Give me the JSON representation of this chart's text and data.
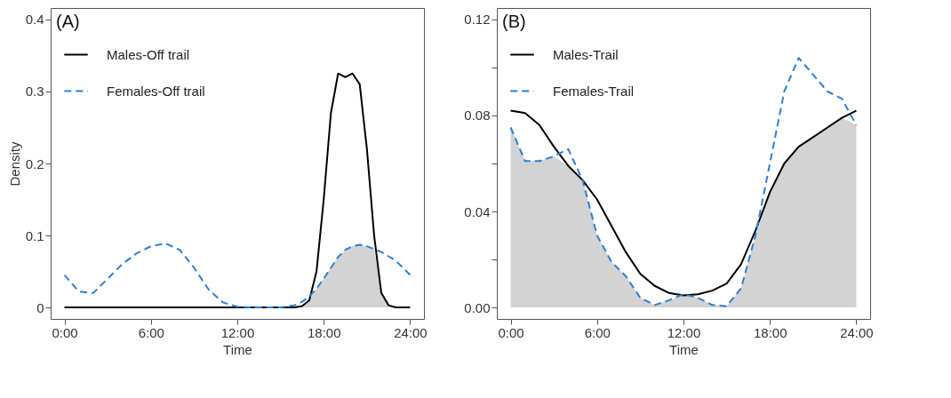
{
  "chart_data": [
    {
      "type": "line",
      "title": "(A)",
      "xlabel": "Time",
      "ylabel": "Density",
      "legend": "top left",
      "grid": false,
      "x": [
        0,
        1,
        2,
        3,
        4,
        5,
        6,
        7,
        8,
        9,
        10,
        11,
        12,
        13,
        14,
        15,
        16,
        16.5,
        17,
        17.5,
        18,
        18.5,
        19,
        19.5,
        20,
        20.5,
        21,
        21.5,
        22,
        22.5,
        23,
        24
      ],
      "xlim": [
        -0.96,
        24.96
      ],
      "xticks": [
        {
          "value": 0,
          "label": "0:00"
        },
        {
          "value": 6,
          "label": "6:00"
        },
        {
          "value": 12,
          "label": "12:00"
        },
        {
          "value": 18,
          "label": "18:00"
        },
        {
          "value": 24,
          "label": "24:00"
        }
      ],
      "ylim": [
        -0.016,
        0.416
      ],
      "yticks": [
        0,
        {
          "value": 0.1,
          "label": "0.1"
        },
        {
          "value": 0.2,
          "label": "0.2"
        },
        {
          "value": 0.3,
          "label": "0.3"
        },
        {
          "value": 0.4,
          "label": "0.4"
        }
      ],
      "series": [
        {
          "type": "area",
          "color": "#d3d3d3",
          "values": [
            0,
            0,
            0,
            0,
            0,
            0,
            0,
            0,
            0,
            0,
            0,
            0,
            0,
            0,
            0,
            0,
            0,
            0.002,
            0.01,
            0.026,
            0.04,
            0.055,
            0.07,
            0.08,
            0.085,
            0.087,
            0.085,
            0.081,
            0.02,
            0.003,
            0,
            0
          ]
        },
        {
          "name": "Males-Off trail",
          "color": "#000000",
          "line_style": "solid",
          "values": [
            0,
            0,
            0,
            0,
            0,
            0,
            0,
            0,
            0,
            0,
            0,
            0,
            0,
            0,
            0,
            0,
            0,
            0.002,
            0.01,
            0.05,
            0.15,
            0.27,
            0.325,
            0.32,
            0.325,
            0.31,
            0.22,
            0.1,
            0.02,
            0.003,
            0,
            0
          ]
        },
        {
          "name": "Females-Off trail",
          "color": "#2a7fd4",
          "line_style": "dashed",
          "values": [
            0.045,
            0.022,
            0.02,
            0.04,
            0.06,
            0.075,
            0.085,
            0.089,
            0.08,
            0.055,
            0.025,
            0.007,
            0.001,
            0,
            0,
            0,
            0.003,
            0.008,
            0.015,
            0.026,
            0.04,
            0.055,
            0.07,
            0.08,
            0.085,
            0.087,
            0.085,
            0.081,
            0.077,
            0.071,
            0.065,
            0.045
          ]
        }
      ]
    },
    {
      "type": "line",
      "title": "(B)",
      "xlabel": "Time",
      "legend": "top left",
      "grid": false,
      "x": [
        0,
        1,
        2,
        3,
        4,
        5,
        6,
        7,
        8,
        9,
        10,
        11,
        12,
        13,
        14,
        15,
        16,
        17,
        18,
        19,
        20,
        21,
        22,
        23,
        24
      ],
      "xlim": [
        -0.96,
        24.96
      ],
      "xticks": [
        {
          "value": 0,
          "label": "0:00"
        },
        {
          "value": 6,
          "label": "6:00"
        },
        {
          "value": 12,
          "label": "12:00"
        },
        {
          "value": 18,
          "label": "18:00"
        },
        {
          "value": 24,
          "label": "24:00"
        }
      ],
      "ylim": [
        -0.0048,
        0.1248
      ],
      "yticks": [
        {
          "value": 0,
          "label": "0.00"
        },
        {
          "value": 0.02,
          "label": null
        },
        {
          "value": 0.04,
          "label": "0.04"
        },
        {
          "value": 0.06,
          "label": null
        },
        {
          "value": 0.08,
          "label": "0.08"
        },
        {
          "value": 0.1,
          "label": null
        },
        {
          "value": 0.12,
          "label": "0.12"
        }
      ],
      "series": [
        {
          "type": "area",
          "color": "#d3d3d3",
          "values": [
            0.075,
            0.061,
            0.061,
            0.063,
            0.059,
            0.053,
            0.03,
            0.019,
            0.013,
            0.004,
            0.001,
            0.003,
            0.005,
            0.004,
            0.001,
            0.0005,
            0.008,
            0.03,
            0.048,
            0.06,
            0.067,
            0.071,
            0.075,
            0.079,
            0.076
          ]
        },
        {
          "name": "Males-Trail",
          "color": "#000000",
          "line_style": "solid",
          "values": [
            0.082,
            0.081,
            0.076,
            0.067,
            0.059,
            0.053,
            0.045,
            0.034,
            0.023,
            0.014,
            0.009,
            0.006,
            0.005,
            0.0055,
            0.007,
            0.01,
            0.018,
            0.032,
            0.048,
            0.06,
            0.067,
            0.071,
            0.075,
            0.079,
            0.082
          ]
        },
        {
          "name": "Females-Trail",
          "color": "#2a7fd4",
          "line_style": "dashed",
          "values": [
            0.075,
            0.061,
            0.061,
            0.063,
            0.066,
            0.053,
            0.03,
            0.019,
            0.013,
            0.004,
            0.001,
            0.003,
            0.0055,
            0.004,
            0.001,
            0.0005,
            0.008,
            0.03,
            0.06,
            0.09,
            0.104,
            0.097,
            0.09,
            0.087,
            0.076
          ]
        }
      ]
    }
  ]
}
